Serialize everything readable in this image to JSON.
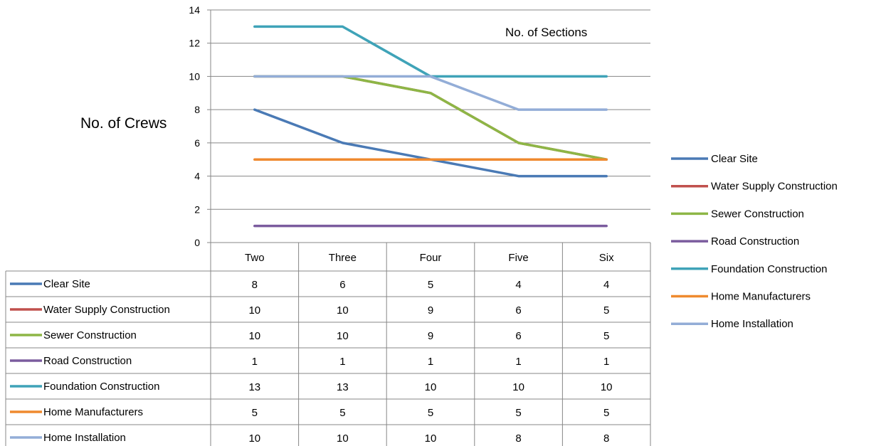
{
  "chart_data": {
    "type": "line",
    "title": "No. of Sections",
    "ylabel": "No. of Crews",
    "xlabel": "",
    "categories": [
      "Two",
      "Three",
      "Four",
      "Five",
      "Six"
    ],
    "ylim": [
      0,
      14
    ],
    "yticks": [
      0,
      2,
      4,
      6,
      8,
      10,
      12,
      14
    ],
    "grid": true,
    "legend_position": "right",
    "data_table": true,
    "series": [
      {
        "name": "Clear Site",
        "color": "#4a7ab5",
        "values": [
          8,
          6,
          5,
          4,
          4
        ]
      },
      {
        "name": "Water Supply Construction",
        "color": "#c0504d",
        "values": [
          10,
          10,
          9,
          6,
          5
        ]
      },
      {
        "name": "Sewer Construction",
        "color": "#8db646",
        "values": [
          10,
          10,
          9,
          6,
          5
        ]
      },
      {
        "name": "Road Construction",
        "color": "#7b5c9e",
        "values": [
          1,
          1,
          1,
          1,
          1
        ]
      },
      {
        "name": "Foundation Construction",
        "color": "#3fa3b8",
        "values": [
          13,
          13,
          10,
          10,
          10
        ]
      },
      {
        "name": "Home Manufacturers",
        "color": "#ef8a2f",
        "values": [
          5,
          5,
          5,
          5,
          5
        ]
      },
      {
        "name": "Home Installation",
        "color": "#93add7",
        "values": [
          10,
          10,
          10,
          8,
          8
        ]
      }
    ]
  }
}
